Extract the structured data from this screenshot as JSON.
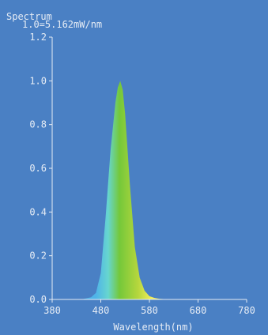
{
  "chart_data": {
    "type": "area",
    "title": "Spectrum",
    "peak_annotation": "1.0=5.162mW/nm",
    "xlabel": "Wavelength(nm)",
    "ylabel": "",
    "xlim": [
      380,
      780
    ],
    "ylim": [
      0.0,
      1.2
    ],
    "x_ticks": [
      "380",
      "480",
      "580",
      "680",
      "780"
    ],
    "y_ticks": [
      "0.0",
      "0.2",
      "0.4",
      "0.6",
      "0.8",
      "1.0",
      "1.2"
    ],
    "grid": false,
    "series": [
      {
        "x": [
          380,
          440,
          460,
          470,
          480,
          490,
          500,
          510,
          515,
          520,
          525,
          530,
          540,
          550,
          560,
          570,
          580,
          590,
          600,
          620,
          660,
          780
        ],
        "values": [
          0.0,
          0.0,
          0.01,
          0.03,
          0.12,
          0.38,
          0.68,
          0.9,
          0.97,
          1.0,
          0.96,
          0.85,
          0.52,
          0.24,
          0.1,
          0.04,
          0.015,
          0.007,
          0.003,
          0.0,
          0.0,
          0.0
        ]
      }
    ]
  },
  "colors": {
    "background": "#4a80c4",
    "axis": "#e6ecf5",
    "fill_blue": "#4fb3e8",
    "fill_cyan": "#67d6cf",
    "fill_green": "#74c83a",
    "fill_yellowgreen": "#b5d63d",
    "fill_yellow": "#f2ee5a"
  }
}
